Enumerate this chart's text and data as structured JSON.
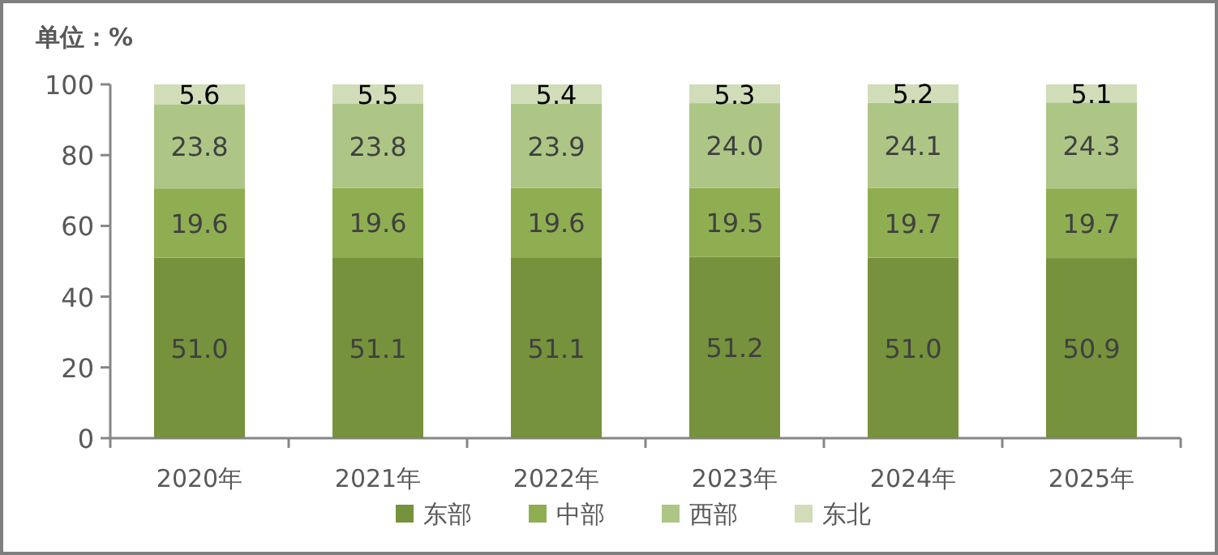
{
  "chart_data": {
    "type": "bar",
    "stacked": true,
    "ylabel": "单位：%",
    "categories": [
      "2020年",
      "2021年",
      "2022年",
      "2023年",
      "2024年",
      "2025年"
    ],
    "series": [
      {
        "name": "东部",
        "color": "#76923c",
        "values": [
          51.0,
          51.1,
          51.1,
          51.2,
          51.0,
          50.9
        ],
        "value_labels": [
          "51.0",
          "51.1",
          "51.1",
          "51.2",
          "51.0",
          "50.9"
        ]
      },
      {
        "name": "中部",
        "color": "#8fae52",
        "values": [
          19.6,
          19.6,
          19.6,
          19.5,
          19.7,
          19.7
        ],
        "value_labels": [
          "19.6",
          "19.6",
          "19.6",
          "19.5",
          "19.7",
          "19.7"
        ]
      },
      {
        "name": "西部",
        "color": "#adc686",
        "values": [
          23.8,
          23.8,
          23.9,
          24.0,
          24.1,
          24.3
        ],
        "value_labels": [
          "23.8",
          "23.8",
          "23.9",
          "24.0",
          "24.1",
          "24.3"
        ]
      },
      {
        "name": "东北",
        "color": "#d0ddb8",
        "values": [
          5.6,
          5.5,
          5.4,
          5.3,
          5.2,
          5.1
        ],
        "value_labels": [
          "5.6",
          "5.5",
          "5.4",
          "5.3",
          "5.2",
          "5.1"
        ]
      }
    ],
    "ylim": [
      0,
      100
    ],
    "yticks": [
      0,
      20,
      40,
      60,
      80,
      100
    ],
    "legend": "bottom",
    "grid": false
  }
}
